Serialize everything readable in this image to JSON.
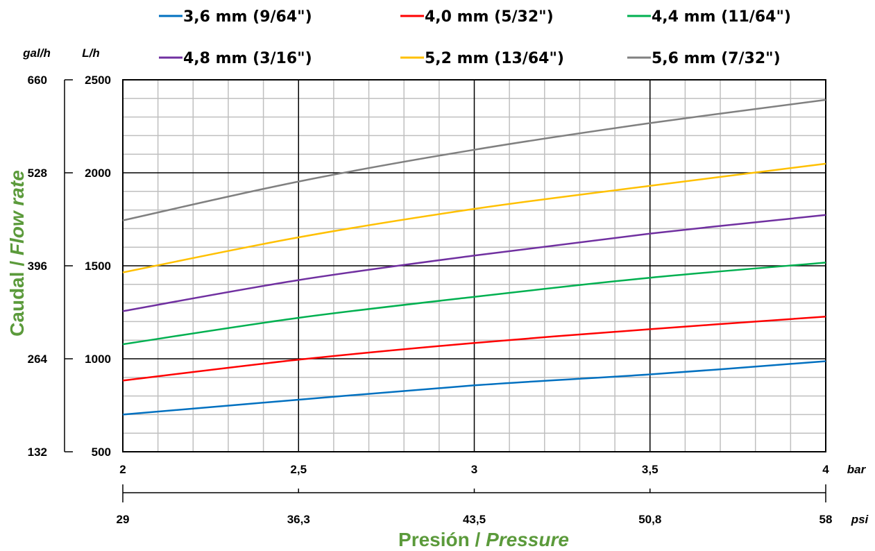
{
  "chart_data": {
    "type": "line",
    "xlabel": "Presión / ",
    "xlabel_italic": "Pressure",
    "ylabel": "Caudal / ",
    "ylabel_italic": "Flow rate",
    "axis_title_color": "#5B9A3B",
    "x_unit": "bar",
    "x2_unit": "psi",
    "y_unit": "L/h",
    "y2_unit": "gal/h",
    "xlim": [
      2,
      4
    ],
    "ylim": [
      500,
      2500
    ],
    "grid": true,
    "legend_position": "top",
    "x_ticks": [
      {
        "value": 2,
        "label": "2"
      },
      {
        "value": 2.5,
        "label": "2,5"
      },
      {
        "value": 3,
        "label": "3"
      },
      {
        "value": 3.5,
        "label": "3,5"
      },
      {
        "value": 4,
        "label": "4"
      }
    ],
    "x2_ticks": [
      {
        "value": 2,
        "label": "29"
      },
      {
        "value": 2.5,
        "label": "36,3"
      },
      {
        "value": 3,
        "label": "43,5"
      },
      {
        "value": 3.5,
        "label": "50,8"
      },
      {
        "value": 4,
        "label": "58"
      }
    ],
    "y_ticks": [
      {
        "value": 500,
        "label": "500"
      },
      {
        "value": 1000,
        "label": "1000"
      },
      {
        "value": 1500,
        "label": "1500"
      },
      {
        "value": 2000,
        "label": "2000"
      },
      {
        "value": 2500,
        "label": "2500"
      }
    ],
    "y2_ticks": [
      {
        "value": 500,
        "label": "132"
      },
      {
        "value": 1000,
        "label": "264"
      },
      {
        "value": 1500,
        "label": "396"
      },
      {
        "value": 2000,
        "label": "528"
      },
      {
        "value": 2500,
        "label": "660"
      }
    ],
    "x": [
      2,
      2.5,
      3,
      3.5,
      4
    ],
    "series": [
      {
        "name": "3,6 mm (9/64\")",
        "color": "#0070C0",
        "values": [
          700,
          780,
          857,
          916,
          987
        ]
      },
      {
        "name": "4,0 mm (5/32\")",
        "color": "#FF0000",
        "values": [
          883,
          995,
          1085,
          1159,
          1227
        ]
      },
      {
        "name": "4,4 mm (11/64\")",
        "color": "#00B050",
        "values": [
          1078,
          1220,
          1333,
          1436,
          1517
        ]
      },
      {
        "name": "4,8 mm (3/16\")",
        "color": "#7030A0",
        "values": [
          1256,
          1423,
          1555,
          1673,
          1773
        ]
      },
      {
        "name": "5,2 mm (13/64\")",
        "color": "#FFC000",
        "values": [
          1464,
          1653,
          1806,
          1930,
          2049
        ]
      },
      {
        "name": "5,6 mm (7/32\")",
        "color": "#808080",
        "values": [
          1744,
          1953,
          2124,
          2267,
          2392
        ]
      }
    ]
  }
}
